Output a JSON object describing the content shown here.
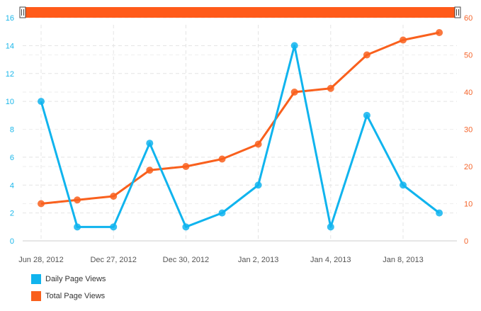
{
  "chart_data": {
    "type": "line",
    "x_tick_labels": [
      "Jun 28, 2012",
      "Dec 27, 2012",
      "Dec 30, 2012",
      "Jan 2, 2013",
      "Jan 4, 2013",
      "Jan 8, 2013"
    ],
    "left_axis": {
      "min": 0,
      "max": 16,
      "ticks": [
        "0",
        "2",
        "4",
        "6",
        "8",
        "10",
        "12",
        "14",
        "16"
      ],
      "color": "#1ab7ea"
    },
    "right_axis": {
      "min": 0,
      "max": 60,
      "ticks": [
        "0",
        "10",
        "20",
        "30",
        "40",
        "50",
        "60"
      ],
      "color": "#f4652c"
    },
    "series": [
      {
        "name": "Daily Page Views",
        "axis": "left",
        "color": "#10b4ee",
        "values": [
          10,
          1,
          1,
          7,
          1,
          2,
          4,
          14,
          1,
          9,
          4,
          2
        ]
      },
      {
        "name": "Total Page Views",
        "axis": "right",
        "color": "#f9601d",
        "values": [
          10,
          11,
          12,
          19,
          20,
          22,
          26,
          40,
          41,
          50,
          54,
          56
        ]
      }
    ],
    "grid": true,
    "legend_position": "bottom-left",
    "range_selector_color": "#ff5a19"
  }
}
